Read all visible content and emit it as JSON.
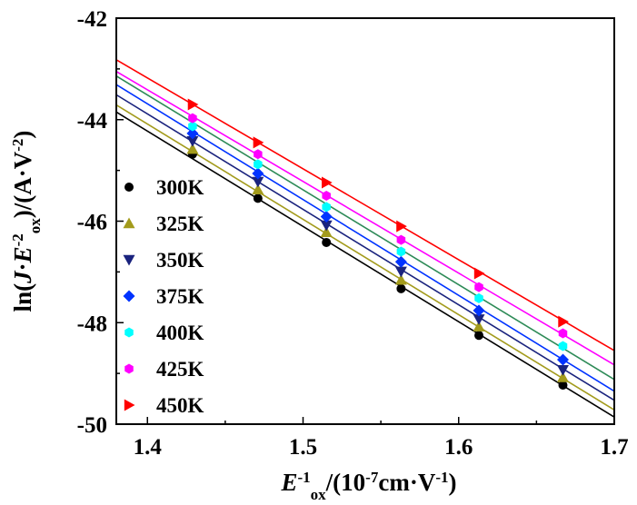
{
  "chart_data": {
    "type": "scatter",
    "title": "",
    "xlabel": {
      "parts": [
        {
          "text": "E",
          "italic": true
        },
        {
          "text": "-1",
          "sup": true
        },
        {
          "text": "ox",
          "sub": true
        },
        {
          "text": "/(10"
        },
        {
          "text": "-7",
          "sup": true
        },
        {
          "text": "cm·V"
        },
        {
          "text": "-1",
          "sup": true
        },
        {
          "text": ")"
        }
      ]
    },
    "ylabel": {
      "parts": [
        {
          "text": "ln("
        },
        {
          "text": "J",
          "italic": true
        },
        {
          "text": "·"
        },
        {
          "text": "E",
          "italic": true
        },
        {
          "text": "-2",
          "sup": true
        },
        {
          "text": "ox",
          "sub": true
        },
        {
          "text": ")/(A·V"
        },
        {
          "text": "-2",
          "sup": true
        },
        {
          "text": ")"
        }
      ]
    },
    "xlim": [
      1.38,
      1.7
    ],
    "ylim": [
      -50,
      -42
    ],
    "xticks": [
      1.4,
      1.5,
      1.6,
      1.7
    ],
    "xtick_labels": [
      "1.4",
      "1.5",
      "1.6",
      "1.7"
    ],
    "yticks": [
      -50,
      -48,
      -46,
      -44,
      -42
    ],
    "ytick_labels": [
      "-50",
      "-48",
      "-46",
      "-44",
      "-42"
    ],
    "grid": false,
    "legend_position": "left",
    "x": [
      1.429,
      1.471,
      1.515,
      1.563,
      1.613,
      1.667
    ],
    "series": [
      {
        "name": "300K",
        "color": "#000000",
        "marker": "circle",
        "values": [
          -44.68,
          -45.55,
          -46.42,
          -47.33,
          -48.25,
          -49.23
        ],
        "fit": [
          [
            1.38,
            -43.85
          ],
          [
            1.7,
            -49.86
          ]
        ]
      },
      {
        "name": "325K",
        "color": "#a39b1c",
        "marker": "triangle-up",
        "values": [
          -44.58,
          -45.38,
          -46.22,
          -47.16,
          -48.08,
          -49.08
        ],
        "fit": [
          [
            1.38,
            -43.71
          ],
          [
            1.7,
            -49.72
          ]
        ]
      },
      {
        "name": "350K",
        "color": "#1a237e",
        "marker": "triangle-down",
        "values": [
          -44.42,
          -45.22,
          -46.08,
          -46.99,
          -47.93,
          -48.93
        ],
        "fit": [
          [
            1.38,
            -43.51
          ],
          [
            1.7,
            -49.53
          ]
        ]
      },
      {
        "name": "375K",
        "color": "#0033ff",
        "marker": "diamond",
        "values": [
          -44.27,
          -45.06,
          -45.91,
          -46.8,
          -47.76,
          -48.73
        ],
        "fit": [
          [
            1.38,
            -43.31
          ],
          [
            1.7,
            -49.35
          ]
        ]
      },
      {
        "name": "400K",
        "color": "#00ffff",
        "marker": "hexagon",
        "values": [
          -44.13,
          -44.88,
          -45.72,
          -46.6,
          -47.52,
          -48.46
        ],
        "fit": [
          [
            1.38,
            -43.14
          ],
          [
            1.7,
            -49.12
          ]
        ]
      },
      {
        "name": "425K",
        "color": "#ff00ff",
        "marker": "hexagon",
        "values": [
          -43.97,
          -44.68,
          -45.5,
          -46.37,
          -47.3,
          -48.21
        ],
        "fit": [
          [
            1.38,
            -43.05
          ],
          [
            1.7,
            -48.83
          ]
        ]
      },
      {
        "name": "450K",
        "color": "#ff0000",
        "marker": "triangle-right",
        "values": [
          -43.7,
          -44.45,
          -45.24,
          -46.1,
          -47.03,
          -47.98
        ],
        "fit": [
          [
            1.38,
            -42.82
          ],
          [
            1.7,
            -48.55
          ]
        ]
      }
    ],
    "fit_line_colors": [
      "#000000",
      "#a39b1c",
      "#1a237e",
      "#0033ff",
      "#2e8b57",
      "#ff00ff",
      "#ff0000"
    ]
  }
}
